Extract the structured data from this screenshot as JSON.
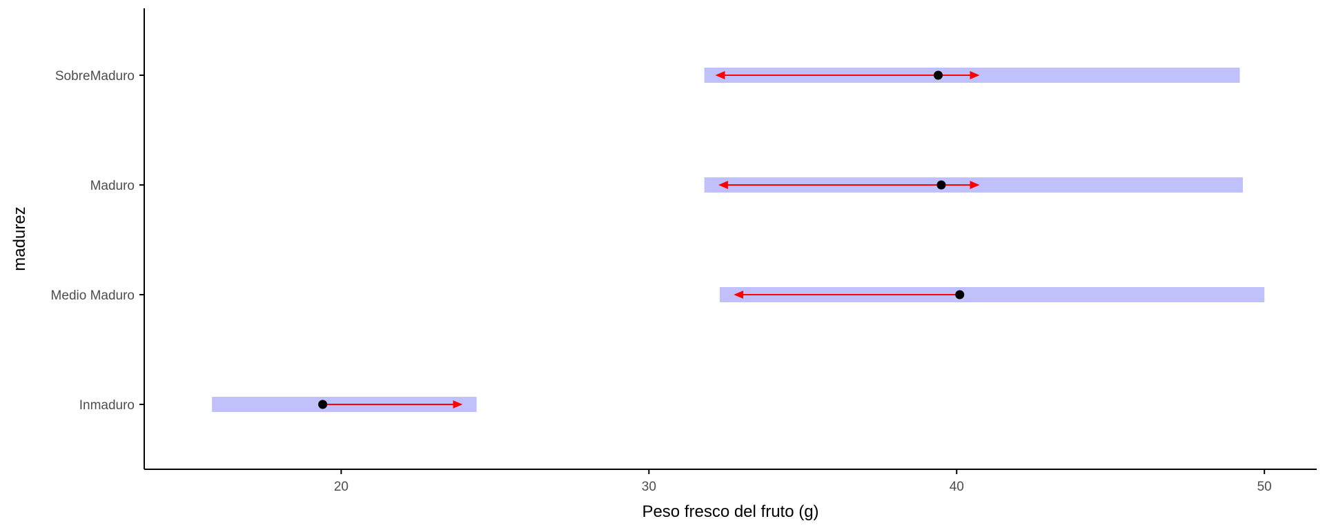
{
  "chart_data": {
    "type": "interval-dot",
    "xlabel": "Peso fresco del fruto (g)",
    "ylabel": "madurez",
    "xlim": [
      13.6,
      51.7
    ],
    "x_ticks": [
      "20",
      "30",
      "40",
      "50"
    ],
    "x_tick_values": [
      20,
      30,
      40,
      50
    ],
    "categories": [
      "Inmaduro",
      "Medio Maduro",
      "Maduro",
      "SobreMaduro"
    ],
    "grid": false,
    "legend": "none",
    "colors": {
      "range_band": "#c0c0fa",
      "arrow": "#ff0000",
      "point": "#000000",
      "axis": "#000000",
      "tick_text": "#4d4d4d"
    },
    "series": [
      {
        "category": "Inmaduro",
        "band": [
          15.8,
          24.4
        ],
        "point": 19.4,
        "arrow_left": null,
        "arrow_right": 23.9
      },
      {
        "category": "Medio Maduro",
        "band": [
          32.3,
          50.0
        ],
        "point": 40.1,
        "arrow_left": 32.8,
        "arrow_right": null
      },
      {
        "category": "Maduro",
        "band": [
          31.8,
          49.3
        ],
        "point": 39.5,
        "arrow_left": 32.3,
        "arrow_right": 40.7
      },
      {
        "category": "SobreMaduro",
        "band": [
          31.8,
          49.2
        ],
        "point": 39.4,
        "arrow_left": 32.2,
        "arrow_right": 40.7
      }
    ]
  }
}
